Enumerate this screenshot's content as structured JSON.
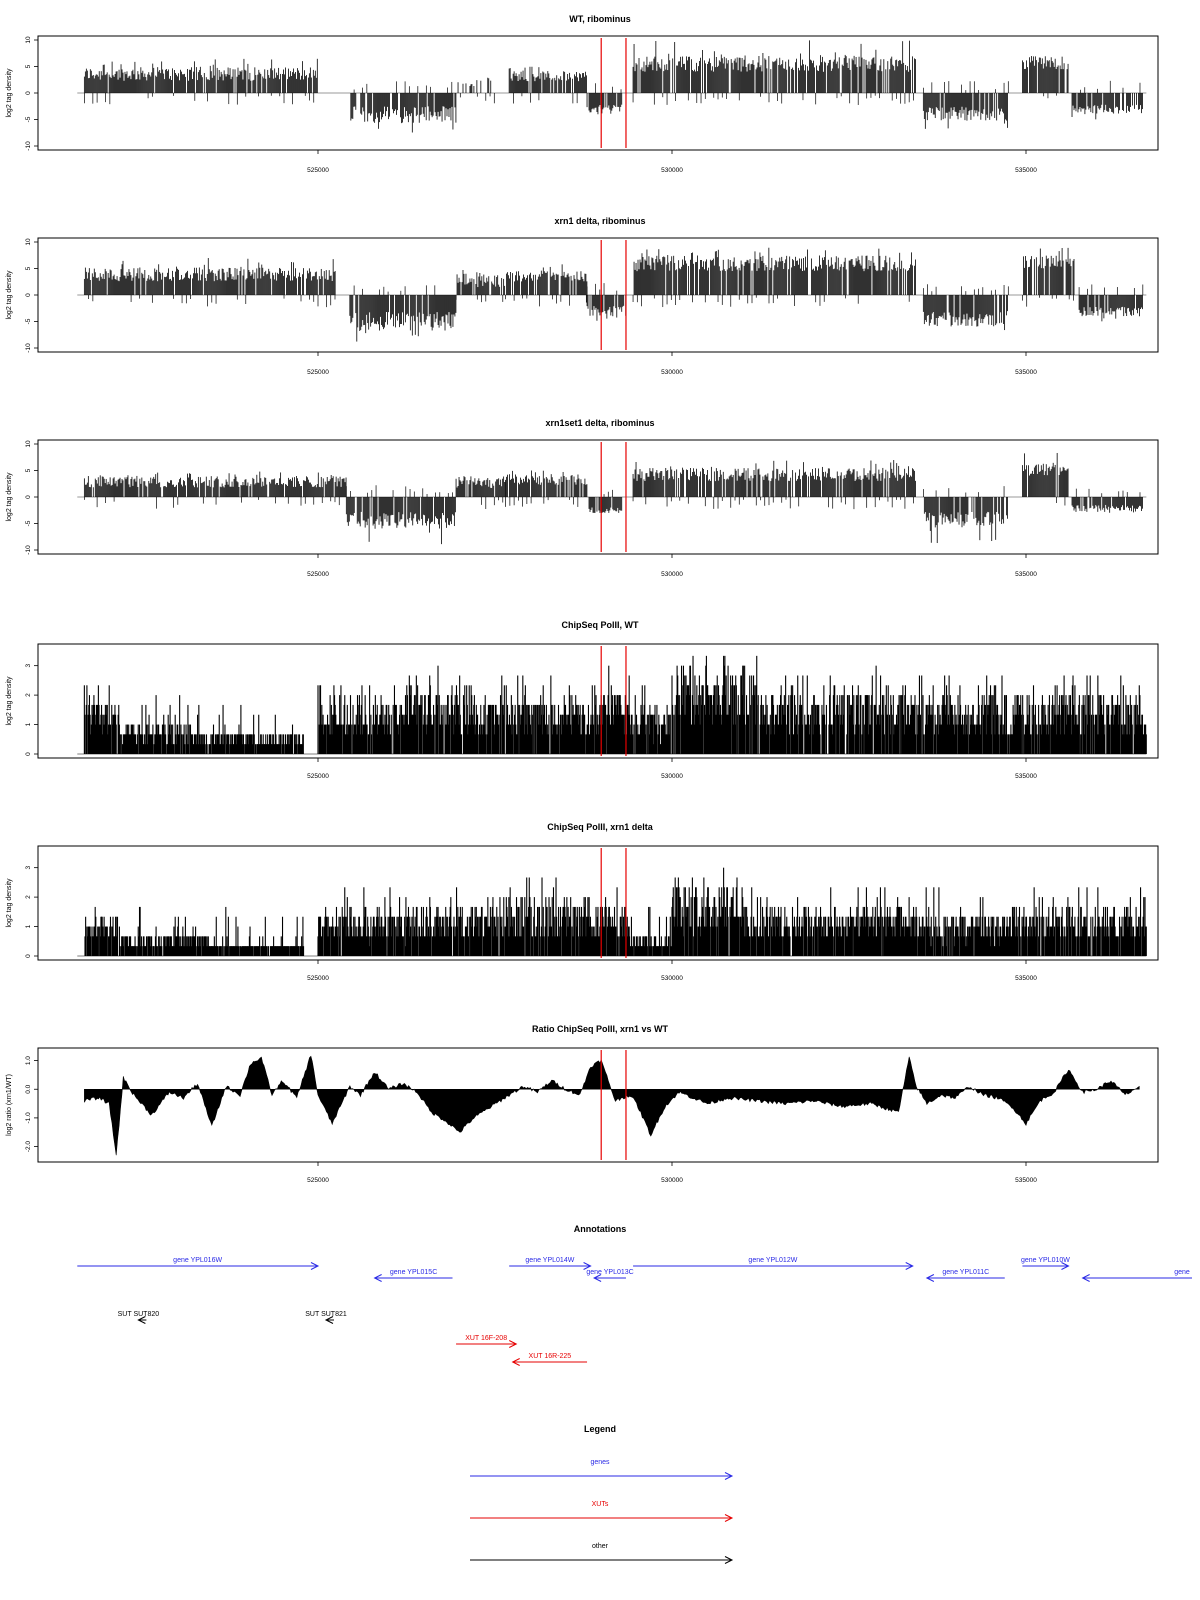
{
  "chart_data": [
    {
      "type": "bar",
      "title": "WT, ribominus",
      "ylabel": "log2 tag density",
      "ylim": [
        -10,
        10
      ],
      "yticks": [
        "10",
        "5",
        "0",
        "-5",
        "-10"
      ],
      "xticks": [
        "525000",
        "530000",
        "535000"
      ],
      "xrange": [
        521600,
        536700
      ],
      "red_lines": [
        529000,
        529350
      ],
      "segments": [
        {
          "x0": 521700,
          "x1": 525000,
          "strand": "plus",
          "base": 2.3,
          "amp": 2.6,
          "max": 6.5
        },
        {
          "x0": 525450,
          "x1": 526950,
          "strand": "minus",
          "base": 2.5,
          "amp": 3.2,
          "max": 8.0
        },
        {
          "x0": 526950,
          "x1": 527500,
          "strand": "sparse",
          "base": 1.2,
          "amp": 1.5,
          "max": 3
        },
        {
          "x0": 527700,
          "x1": 528800,
          "strand": "plus",
          "base": 2.2,
          "amp": 2.0,
          "max": 5
        },
        {
          "x0": 528800,
          "x1": 529300,
          "strand": "minus",
          "base": 2.0,
          "amp": 2.0,
          "max": 4
        },
        {
          "x0": 529450,
          "x1": 533450,
          "strand": "plus",
          "base": 4.0,
          "amp": 3.0,
          "max": 10
        },
        {
          "x0": 533550,
          "x1": 534750,
          "strand": "minus",
          "base": 2.5,
          "amp": 2.8,
          "max": 7
        },
        {
          "x0": 534950,
          "x1": 535600,
          "strand": "plus",
          "base": 4.5,
          "amp": 2.5,
          "max": 8
        },
        {
          "x0": 535650,
          "x1": 536650,
          "strand": "minus",
          "base": 2.2,
          "amp": 1.8,
          "max": 5
        }
      ]
    },
    {
      "type": "bar",
      "title": "xrn1 delta, ribominus",
      "ylabel": "log2 tag density",
      "ylim": [
        -10,
        10
      ],
      "yticks": [
        "10",
        "5",
        "0",
        "-5",
        "-10"
      ],
      "xticks": [
        "525000",
        "530000",
        "535000"
      ],
      "xrange": [
        521600,
        536700
      ],
      "red_lines": [
        529000,
        529350
      ],
      "segments": [
        {
          "x0": 521700,
          "x1": 525250,
          "strand": "plus",
          "base": 2.6,
          "amp": 2.6,
          "max": 7
        },
        {
          "x0": 525450,
          "x1": 526950,
          "strand": "minus",
          "base": 3.2,
          "amp": 3.5,
          "max": 10
        },
        {
          "x0": 526950,
          "x1": 527650,
          "strand": "plus",
          "base": 1.5,
          "amp": 2.5,
          "max": 5
        },
        {
          "x0": 527650,
          "x1": 528800,
          "strand": "plus",
          "base": 2.5,
          "amp": 2.2,
          "max": 6
        },
        {
          "x0": 528800,
          "x1": 529350,
          "strand": "minus",
          "base": 2.0,
          "amp": 2.0,
          "max": 5
        },
        {
          "x0": 529450,
          "x1": 533450,
          "strand": "plus",
          "base": 4.5,
          "amp": 3.0,
          "max": 9
        },
        {
          "x0": 533550,
          "x1": 534750,
          "strand": "minus",
          "base": 3.0,
          "amp": 3.0,
          "max": 8
        },
        {
          "x0": 534950,
          "x1": 535700,
          "strand": "plus",
          "base": 5.0,
          "amp": 2.5,
          "max": 9
        },
        {
          "x0": 535750,
          "x1": 536650,
          "strand": "minus",
          "base": 2.2,
          "amp": 1.8,
          "max": 5
        }
      ]
    },
    {
      "type": "bar",
      "title": "xrn1set1 delta, ribominus",
      "ylabel": "log2 tag density",
      "ylim": [
        -10,
        10
      ],
      "yticks": [
        "10",
        "5",
        "0",
        "-5",
        "-10"
      ],
      "xticks": [
        "525000",
        "530000",
        "535000"
      ],
      "xrange": [
        521600,
        536700
      ],
      "red_lines": [
        529000,
        529350
      ],
      "segments": [
        {
          "x0": 521700,
          "x1": 525400,
          "strand": "plus",
          "base": 1.8,
          "amp": 2.2,
          "max": 5
        },
        {
          "x0": 525400,
          "x1": 526950,
          "strand": "minus",
          "base": 2.8,
          "amp": 3.2,
          "max": 9
        },
        {
          "x0": 526950,
          "x1": 527650,
          "strand": "plus",
          "base": 1.6,
          "amp": 2.0,
          "max": 4
        },
        {
          "x0": 527650,
          "x1": 528800,
          "strand": "plus",
          "base": 2.3,
          "amp": 2.0,
          "max": 5
        },
        {
          "x0": 528800,
          "x1": 529300,
          "strand": "minus",
          "base": 1.8,
          "amp": 1.5,
          "max": 3
        },
        {
          "x0": 529450,
          "x1": 533450,
          "strand": "plus",
          "base": 3.0,
          "amp": 2.5,
          "max": 7
        },
        {
          "x0": 533550,
          "x1": 534750,
          "strand": "minus",
          "base": 2.8,
          "amp": 3.0,
          "max": 9
        },
        {
          "x0": 534950,
          "x1": 535600,
          "strand": "plus",
          "base": 4.0,
          "amp": 2.5,
          "max": 8.5
        },
        {
          "x0": 535650,
          "x1": 536650,
          "strand": "minus",
          "base": 1.5,
          "amp": 1.2,
          "max": 3
        }
      ]
    },
    {
      "type": "bar",
      "title": "ChipSeq PolII, WT",
      "ylabel": "log2 tag density",
      "ylim": [
        0,
        3.6
      ],
      "yticks": [
        "3",
        "2",
        "1",
        "0"
      ],
      "xticks": [
        "525000",
        "530000",
        "535000"
      ],
      "xrange": [
        521600,
        536700
      ],
      "red_lines": [
        529000,
        529350
      ],
      "levels": [
        {
          "x0": 521700,
          "x1": 522200,
          "level": 1.4
        },
        {
          "x0": 522200,
          "x1": 523200,
          "level": 0.9
        },
        {
          "x0": 523200,
          "x1": 524800,
          "level": 0.6
        },
        {
          "x0": 525000,
          "x1": 526200,
          "level": 1.5
        },
        {
          "x0": 526200,
          "x1": 527200,
          "level": 1.9
        },
        {
          "x0": 527200,
          "x1": 528900,
          "level": 1.5
        },
        {
          "x0": 528900,
          "x1": 529400,
          "level": 1.7
        },
        {
          "x0": 529400,
          "x1": 530000,
          "level": 1.2
        },
        {
          "x0": 530000,
          "x1": 531200,
          "level": 2.3
        },
        {
          "x0": 531200,
          "x1": 533500,
          "level": 1.7
        },
        {
          "x0": 533500,
          "x1": 534800,
          "level": 1.5
        },
        {
          "x0": 534800,
          "x1": 536700,
          "level": 1.6
        }
      ]
    },
    {
      "type": "bar",
      "title": "ChipSeq PolII, xrn1 delta",
      "ylabel": "log2 tag density",
      "ylim": [
        0,
        3.6
      ],
      "yticks": [
        "3",
        "2",
        "1",
        "0"
      ],
      "xticks": [
        "525000",
        "530000",
        "535000"
      ],
      "xrange": [
        521600,
        536700
      ],
      "red_lines": [
        529000,
        529350
      ],
      "levels": [
        {
          "x0": 521700,
          "x1": 522200,
          "level": 1.1
        },
        {
          "x0": 522200,
          "x1": 523500,
          "level": 0.6
        },
        {
          "x0": 523500,
          "x1": 524800,
          "level": 0.4
        },
        {
          "x0": 525000,
          "x1": 526300,
          "level": 1.2
        },
        {
          "x0": 526300,
          "x1": 527300,
          "level": 1.3
        },
        {
          "x0": 527300,
          "x1": 528900,
          "level": 1.5
        },
        {
          "x0": 528900,
          "x1": 529400,
          "level": 1.3
        },
        {
          "x0": 529400,
          "x1": 530000,
          "level": 0.6
        },
        {
          "x0": 530000,
          "x1": 531000,
          "level": 2.0
        },
        {
          "x0": 531000,
          "x1": 533500,
          "level": 1.3
        },
        {
          "x0": 533500,
          "x1": 534800,
          "level": 1.1
        },
        {
          "x0": 534800,
          "x1": 536700,
          "level": 1.3
        }
      ]
    },
    {
      "type": "area",
      "title": "Ratio ChipSeq PolII, xrn1 vs WT",
      "ylabel": "log2 ratio (xrn1/WT)",
      "ylim": [
        -2.4,
        1.3
      ],
      "yticks": [
        "1.0",
        "0.0",
        "-1.0",
        "-2.0"
      ],
      "xticks": [
        "525000",
        "530000",
        "535000"
      ],
      "xrange": [
        521600,
        536700
      ],
      "red_lines": [
        529000,
        529350
      ],
      "x": [
        521700,
        521900,
        522050,
        522150,
        522250,
        522400,
        522650,
        522900,
        523100,
        523300,
        523500,
        523700,
        523900,
        524050,
        524200,
        524350,
        524500,
        524700,
        524900,
        525000,
        525200,
        525450,
        525600,
        525800,
        526000,
        526200,
        526400,
        526600,
        526800,
        527000,
        527200,
        527450,
        527700,
        527900,
        528100,
        528300,
        528500,
        528700,
        528850,
        529000,
        529200,
        529400,
        529500,
        529700,
        529900,
        530100,
        530300,
        530500,
        530800,
        531200,
        531600,
        532000,
        532400,
        532800,
        533200,
        533350,
        533450,
        533600,
        533800,
        534000,
        534200,
        534400,
        534600,
        534800,
        535000,
        535200,
        535400,
        535600,
        535800,
        536000,
        536200,
        536400,
        536600
      ],
      "y": [
        -0.4,
        -0.3,
        -0.5,
        -2.3,
        0.4,
        -0.2,
        -0.9,
        -0.1,
        -0.3,
        0.2,
        -1.3,
        0.1,
        -0.2,
        0.9,
        1.1,
        -0.2,
        0.3,
        -0.3,
        1.2,
        -0.2,
        -1.2,
        0.1,
        -0.2,
        0.6,
        0.0,
        0.2,
        -0.1,
        -0.8,
        -1.1,
        -1.5,
        -1.0,
        -0.6,
        -0.2,
        0.1,
        -0.1,
        0.3,
        0.0,
        -0.2,
        0.8,
        1.0,
        -0.4,
        -0.2,
        -0.5,
        -1.6,
        -0.6,
        -0.1,
        -0.3,
        -0.5,
        -0.3,
        -0.4,
        -0.5,
        -0.4,
        -0.6,
        -0.5,
        -0.8,
        1.1,
        0.1,
        -0.5,
        -0.2,
        -0.3,
        0.1,
        -0.2,
        -0.3,
        -0.6,
        -1.2,
        -0.4,
        -0.1,
        0.7,
        -0.1,
        0.0,
        0.3,
        -0.2,
        0.1
      ]
    }
  ],
  "annotations": {
    "title": "Annotations",
    "features": [
      {
        "label": "gene YPL016W",
        "type": "gene",
        "start": 521600,
        "end": 525000,
        "dir": "right",
        "row": 0
      },
      {
        "label": "gene YPL015C",
        "type": "gene",
        "start": 525800,
        "end": 526900,
        "dir": "left",
        "row": 1
      },
      {
        "label": "gene YPL014W",
        "type": "gene",
        "start": 527700,
        "end": 528850,
        "dir": "right",
        "row": 0
      },
      {
        "label": "gene YPL013C",
        "type": "gene",
        "start": 528900,
        "end": 529350,
        "dir": "left",
        "row": 1
      },
      {
        "label": "gene YPL012W",
        "type": "gene",
        "start": 529450,
        "end": 533400,
        "dir": "right",
        "row": 0
      },
      {
        "label": "gene YPL011C",
        "type": "gene",
        "start": 533600,
        "end": 534700,
        "dir": "left",
        "row": 1
      },
      {
        "label": "gene YPL010W",
        "type": "gene",
        "start": 534950,
        "end": 535600,
        "dir": "right",
        "row": 0
      },
      {
        "label": "gene",
        "type": "gene",
        "start": 535800,
        "end": 537400,
        "dir": "left",
        "row": 1
      },
      {
        "label": "SUT SUT820",
        "type": "other",
        "start": 522350,
        "end": 522450,
        "dir": "left",
        "row": 2
      },
      {
        "label": "SUT SUT821",
        "type": "other",
        "start": 525000,
        "end": 525150,
        "dir": "left",
        "row": 2
      },
      {
        "label": "XUT 16F-208",
        "type": "xut",
        "start": 526950,
        "end": 527800,
        "dir": "right",
        "row": 3
      },
      {
        "label": "XUT 16R-225",
        "type": "xut",
        "start": 527750,
        "end": 528800,
        "dir": "left",
        "row": 4
      }
    ]
  },
  "legend": {
    "title": "Legend",
    "items": [
      {
        "label": "genes",
        "color": "#2a2ae6"
      },
      {
        "label": "XUTs",
        "color": "#e60000"
      },
      {
        "label": "other",
        "color": "#000000"
      }
    ]
  },
  "colors": {
    "gene": "#2a2ae6",
    "xut": "#e60000",
    "other": "#000000",
    "red_line": "#e60000"
  }
}
